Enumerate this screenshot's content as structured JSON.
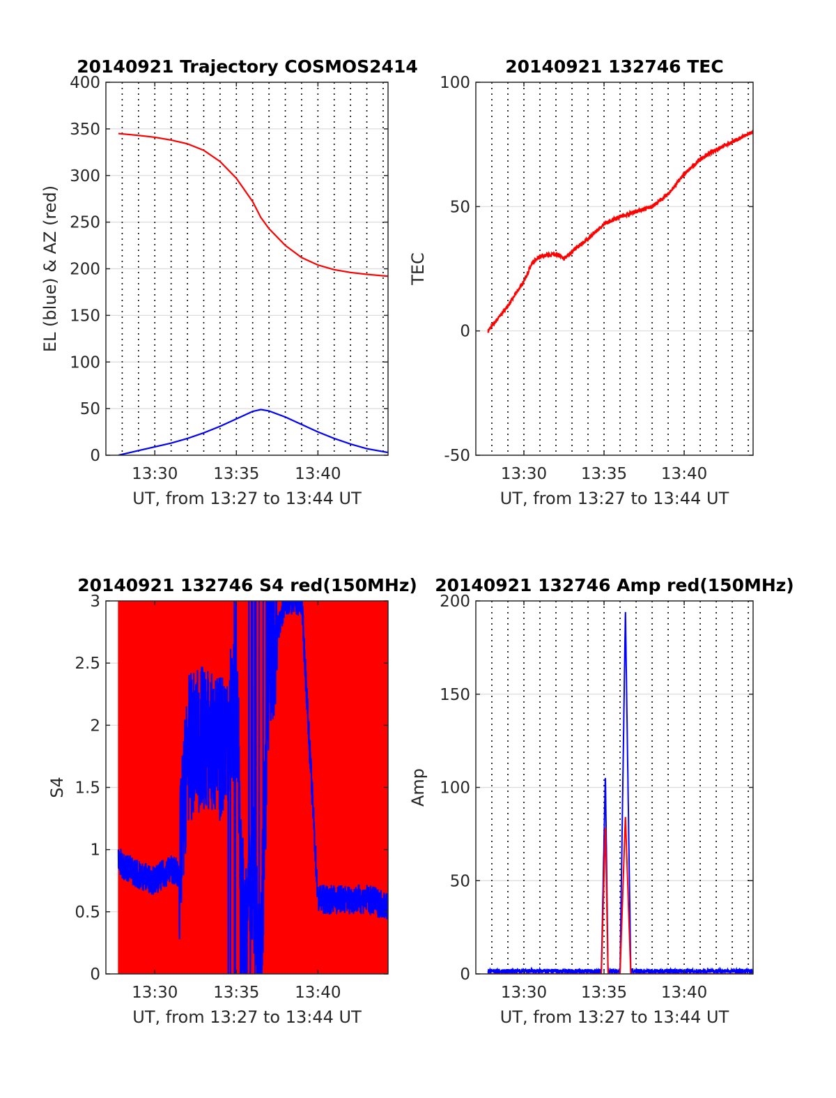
{
  "figure": {
    "colors": {
      "el": "#0000ff",
      "az": "#ff0000",
      "tec": "#ff0000",
      "s4_red": "#ff0000",
      "s4_blue": "#0000ff",
      "amp_red": "#ff0000",
      "amp_blue": "#0000ff",
      "axes": "#262626",
      "grid": "#dcdcdc"
    }
  },
  "chart_data": [
    {
      "id": "traj",
      "type": "line",
      "title": "20140921 Trajectory COSMOS2414",
      "xlabel": "UT, from 13:27 to 13:44 UT",
      "ylabel": "EL (blue) & AZ (red)",
      "xlim": [
        "13:27",
        "13:44"
      ],
      "xlim_min": [
        807,
        824.3
      ],
      "ylim": [
        0,
        400
      ],
      "yticks": [
        "0",
        "50",
        "100",
        "150",
        "200",
        "250",
        "300",
        "350",
        "400"
      ],
      "xticks": [
        "13:30",
        "13:35",
        "13:40"
      ],
      "grid": "horizontal major, vertical dotted every 1 min",
      "series": [
        {
          "name": "EL",
          "color": "#0000ff",
          "x": [
            "13:27:46",
            "13:29:00",
            "13:30:00",
            "13:31:00",
            "13:32:00",
            "13:33:00",
            "13:34:00",
            "13:35:00",
            "13:36:00",
            "13:36:30",
            "13:37:00",
            "13:38:00",
            "13:39:00",
            "13:40:00",
            "13:41:00",
            "13:42:00",
            "13:43:00",
            "13:44:17"
          ],
          "y": [
            0,
            5,
            9,
            13,
            18,
            24,
            31,
            39,
            47,
            49,
            47.5,
            41,
            33,
            25,
            18,
            12,
            7,
            3
          ]
        },
        {
          "name": "AZ",
          "color": "#ff0000",
          "x": [
            "13:27:46",
            "13:29:00",
            "13:30:00",
            "13:31:00",
            "13:32:00",
            "13:33:00",
            "13:34:00",
            "13:35:00",
            "13:36:00",
            "13:36:30",
            "13:37:00",
            "13:38:00",
            "13:39:00",
            "13:40:00",
            "13:41:00",
            "13:42:00",
            "13:43:00",
            "13:44:17"
          ],
          "y": [
            345,
            343,
            341,
            338,
            334,
            327,
            315,
            297,
            272,
            255,
            243,
            225,
            212,
            204,
            199,
            196,
            194,
            192
          ]
        }
      ]
    },
    {
      "id": "tec",
      "type": "line",
      "title": "20140921 132746 TEC",
      "xlabel": "UT, from 13:27 to 13:44 UT",
      "ylabel": "TEC",
      "xlim": [
        "13:27",
        "13:44"
      ],
      "xlim_min": [
        807,
        824.3
      ],
      "ylim": [
        -50,
        100
      ],
      "yticks": [
        "-50",
        "0",
        "50",
        "100"
      ],
      "xticks": [
        "13:30",
        "13:35",
        "13:40"
      ],
      "series": [
        {
          "color": "#ff0000",
          "x": [
            "13:27:46",
            "13:28:30",
            "13:29:00",
            "13:30:00",
            "13:30:30",
            "13:31:00",
            "13:32:00",
            "13:32:30",
            "13:33:00",
            "13:34:00",
            "13:35:00",
            "13:36:00",
            "13:37:00",
            "13:38:00",
            "13:39:00",
            "13:40:00",
            "13:41:00",
            "13:42:00",
            "13:43:00",
            "13:44:17"
          ],
          "y": [
            0,
            6,
            10,
            20,
            27,
            30,
            31,
            29,
            32,
            37,
            43,
            46,
            48,
            50,
            55,
            63,
            69,
            73,
            76,
            80
          ]
        }
      ]
    },
    {
      "id": "s4",
      "type": "line",
      "title": "20140921 132746 S4 red(150MHz)",
      "xlabel": "UT, from 13:27 to 13:44 UT",
      "ylabel": "S4",
      "xlim": [
        "13:27",
        "13:44"
      ],
      "xlim_min": [
        807,
        824.3
      ],
      "ylim": [
        0,
        3
      ],
      "yticks": [
        "0",
        "0.5",
        "1",
        "1.5",
        "2",
        "2.5",
        "3"
      ],
      "xticks": [
        "13:30",
        "13:35",
        "13:40"
      ],
      "series": [
        {
          "color": "#ff0000",
          "note_values": "red series saturates 0 to 3 across most of the interval",
          "x": [
            "13:27:46",
            "13:44:17"
          ],
          "y": [
            0,
            3
          ]
        },
        {
          "color": "#0000ff",
          "x": [
            "13:27:46",
            "13:29:00",
            "13:30:00",
            "13:31:00",
            "13:31:30",
            "13:32:00",
            "13:33:00",
            "13:34:00",
            "13:35:00",
            "13:35:30",
            "13:36:00",
            "13:36:30",
            "13:37:00",
            "13:38:00",
            "13:39:00",
            "13:40:00",
            "13:41:00",
            "13:42:00",
            "13:43:00",
            "13:44:17"
          ],
          "y": [
            0.9,
            0.8,
            0.75,
            0.85,
            0.8,
            1.8,
            1.9,
            1.8,
            2.2,
            0.1,
            0.9,
            0.1,
            2.5,
            3,
            3,
            0.6,
            0.6,
            0.6,
            0.6,
            0.55
          ]
        }
      ]
    },
    {
      "id": "amp",
      "type": "line",
      "title": "20140921 132746 Amp red(150MHz)",
      "xlabel": "UT, from 13:27 to 13:44 UT",
      "ylabel": "Amp",
      "xlim": [
        "13:27",
        "13:44"
      ],
      "xlim_min": [
        807,
        824.3
      ],
      "ylim": [
        0,
        200
      ],
      "yticks": [
        "0",
        "50",
        "100",
        "150",
        "200"
      ],
      "xticks": [
        "13:30",
        "13:35",
        "13:40"
      ],
      "series": [
        {
          "color": "#0000ff",
          "x": [
            "13:27:46",
            "13:34:50",
            "13:35:05",
            "13:35:15",
            "13:35:30",
            "13:36:00",
            "13:36:20",
            "13:36:40",
            "13:37:00",
            "13:38:00",
            "13:44:17"
          ],
          "y": [
            1,
            1,
            107,
            1,
            1,
            1,
            195,
            1,
            1,
            1,
            1
          ]
        },
        {
          "color": "#ff0000",
          "x": [
            "13:27:46",
            "13:34:50",
            "13:35:05",
            "13:35:15",
            "13:36:00",
            "13:36:20",
            "13:36:40",
            "13:44:17"
          ],
          "y": [
            0,
            0,
            80,
            0,
            0,
            85,
            0,
            0
          ]
        }
      ]
    }
  ]
}
